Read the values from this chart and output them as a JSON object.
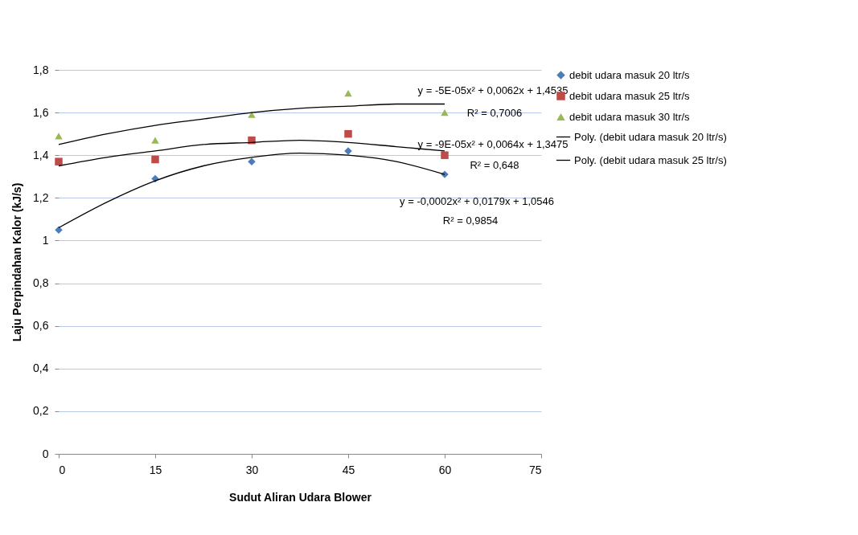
{
  "chart_data": {
    "type": "scatter",
    "xlabel": "Sudut Aliran Udara Blower",
    "ylabel": "Laju Perpindahan Kalor (kJ/s)",
    "x": [
      0,
      15,
      30,
      45,
      60
    ],
    "xlim": [
      0,
      75
    ],
    "xticks": [
      0,
      15,
      30,
      45,
      60,
      75
    ],
    "ylim": [
      0,
      1.8
    ],
    "yticks": [
      0,
      {
        "value": 0.2,
        "label": "0,2"
      },
      {
        "value": 0.4,
        "label": "0,4"
      },
      {
        "value": 0.6,
        "label": "0,6"
      },
      {
        "value": 0.8,
        "label": "0,8"
      },
      1,
      {
        "value": 1.2,
        "label": "1,2"
      },
      {
        "value": 1.4,
        "label": "1,4"
      },
      {
        "value": 1.6,
        "label": "1,6"
      },
      {
        "value": 1.8,
        "label": "1,8"
      }
    ],
    "grid": "y",
    "legend": "right",
    "series": [
      {
        "name": "debit udara masuk 20 ltr/s",
        "color": "#4a7ebb",
        "marker": "diamond",
        "values": [
          1.05,
          1.29,
          1.37,
          1.42,
          1.31
        ]
      },
      {
        "name": "debit udara masuk 25 ltr/s",
        "color": "#be4b48",
        "marker": "square",
        "values": [
          1.37,
          1.38,
          1.47,
          1.5,
          1.4
        ]
      },
      {
        "name": "debit udara masuk 30 ltr/s",
        "color": "#98b954",
        "marker": "triangle",
        "values": [
          1.49,
          1.47,
          1.59,
          1.69,
          1.6
        ]
      },
      {
        "type": "line",
        "name": "Poly. (debit udara masuk 20 ltr/s)",
        "color": "#000000",
        "marker": "none",
        "x": [
          0,
          7.5,
          15,
          22.5,
          30,
          37.5,
          45,
          52.5,
          60
        ],
        "values": [
          1.06,
          1.18,
          1.28,
          1.35,
          1.39,
          1.41,
          1.4,
          1.37,
          1.31
        ]
      },
      {
        "type": "line",
        "name": "Poly. (debit udara masuk 25 ltr/s)",
        "color": "#000000",
        "marker": "none",
        "x": [
          0,
          7.5,
          15,
          22.5,
          30,
          37.5,
          45,
          52.5,
          60
        ],
        "values": [
          1.35,
          1.39,
          1.42,
          1.45,
          1.46,
          1.47,
          1.46,
          1.44,
          1.42
        ]
      },
      {
        "type": "line",
        "color": "#000000",
        "marker": "none",
        "x": [
          0,
          7.5,
          15,
          22.5,
          30,
          37.5,
          45,
          52.5,
          60
        ],
        "values": [
          1.45,
          1.5,
          1.54,
          1.57,
          1.6,
          1.62,
          1.63,
          1.64,
          1.64
        ]
      }
    ],
    "annotations": [
      "y = -5E-05x²  + 0,0062x + 1,4535",
      "R² = 0,7006",
      "y = -9E-05x²  + 0,0064x + 1,3475",
      "R² = 0,648",
      "y = -0,0002x² + 0,0179x + 1,0546",
      "R² = 0,9854"
    ]
  }
}
